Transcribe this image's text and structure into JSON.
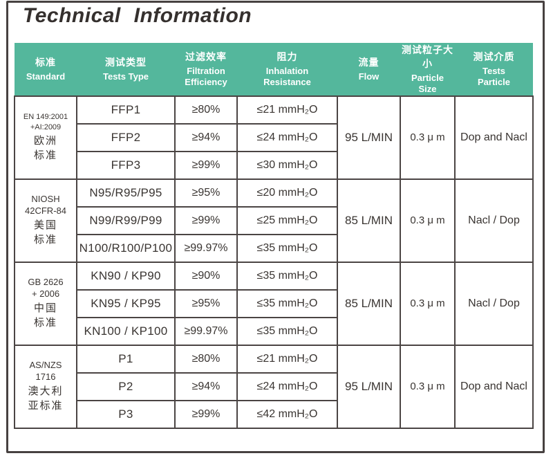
{
  "title": "Technical Information",
  "colors": {
    "header_bg": "#54b79c",
    "border": "#4a4443",
    "text": "#393431",
    "header_text": "#ffffff",
    "title_text": "#35302e"
  },
  "table": {
    "columns": [
      {
        "zh": "标准",
        "en": "Standard"
      },
      {
        "zh": "测试类型",
        "en": "Tests Type"
      },
      {
        "zh": "过滤效率",
        "en": "Filtration\nEfficiency"
      },
      {
        "zh": "阻力",
        "en": "Inhalation\nResistance"
      },
      {
        "zh": "流量",
        "en": "Flow"
      },
      {
        "zh": "测试粒子大小",
        "en": "Particle\nSize"
      },
      {
        "zh": "测试介质",
        "en": "Tests\nParticle"
      }
    ],
    "groups": [
      {
        "standard_lines": [
          "EN 149:2001",
          "+AI:2009"
        ],
        "standard_zh_lines": [
          "欧洲",
          "标准"
        ],
        "flow": "95 L/MIN",
        "particle_size": "0.3 μ m",
        "test_particle": "Dop and Nacl",
        "rows": [
          {
            "type": "FFP1",
            "efficiency": "≥80%",
            "resistance": "≤21 mmH₂O"
          },
          {
            "type": "FFP2",
            "efficiency": "≥94%",
            "resistance": "≤24 mmH₂O"
          },
          {
            "type": "FFP3",
            "efficiency": "≥99%",
            "resistance": "≤30 mmH₂O"
          }
        ]
      },
      {
        "standard_lines": [
          "NIOSH",
          "42CFR-84"
        ],
        "standard_zh_lines": [
          "美国",
          "标准"
        ],
        "flow": "85 L/MIN",
        "particle_size": "0.3 μ m",
        "test_particle": "Nacl / Dop",
        "rows": [
          {
            "type": "N95/R95/P95",
            "efficiency": "≥95%",
            "resistance": "≤20 mmH₂O"
          },
          {
            "type": "N99/R99/P99",
            "efficiency": "≥99%",
            "resistance": "≤25 mmH₂O"
          },
          {
            "type": "N100/R100/P100",
            "efficiency": "≥99.97%",
            "resistance": "≤35 mmH₂O"
          }
        ]
      },
      {
        "standard_lines": [
          "GB 2626",
          "+ 2006"
        ],
        "standard_zh_lines": [
          "中国",
          "标准"
        ],
        "flow": "85 L/MIN",
        "particle_size": "0.3 μ m",
        "test_particle": "Nacl / Dop",
        "rows": [
          {
            "type": "KN90 / KP90",
            "efficiency": "≥90%",
            "resistance": "≤35 mmH₂O"
          },
          {
            "type": "KN95 / KP95",
            "efficiency": "≥95%",
            "resistance": "≤35 mmH₂O"
          },
          {
            "type": "KN100 / KP100",
            "efficiency": "≥99.97%",
            "resistance": "≤35 mmH₂O"
          }
        ]
      },
      {
        "standard_lines": [
          "AS/NZS",
          "1716"
        ],
        "standard_zh_lines": [
          "澳大利",
          "亚标准"
        ],
        "flow": "95 L/MIN",
        "particle_size": "0.3 μ m",
        "test_particle": "Dop and Nacl",
        "rows": [
          {
            "type": "P1",
            "efficiency": "≥80%",
            "resistance": "≤21 mmH₂O"
          },
          {
            "type": "P2",
            "efficiency": "≥94%",
            "resistance": "≤24 mmH₂O"
          },
          {
            "type": "P3",
            "efficiency": "≥99%",
            "resistance": "≤42 mmH₂O"
          }
        ]
      }
    ]
  }
}
